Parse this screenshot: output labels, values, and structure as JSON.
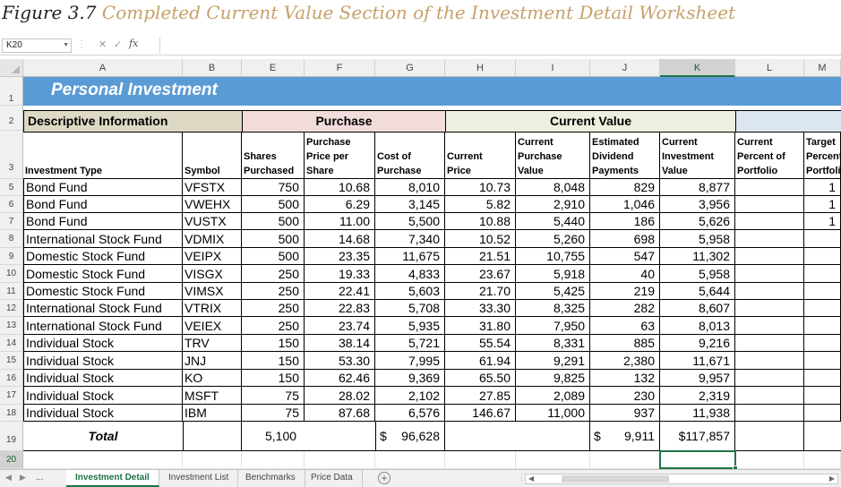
{
  "caption": {
    "prefix": "Figure 3.7",
    "title": "Completed Current Value Section of the Investment Detail Worksheet"
  },
  "formula_bar": {
    "name_box": "K20",
    "fx_label": "fx",
    "content": ""
  },
  "column_headers": [
    "A",
    "B",
    "E",
    "F",
    "G",
    "H",
    "I",
    "J",
    "K",
    "L",
    "M"
  ],
  "selected_column": "K",
  "row_numbers": [
    "1",
    "2",
    "3",
    "5",
    "6",
    "7",
    "8",
    "9",
    "10",
    "11",
    "12",
    "13",
    "14",
    "15",
    "16",
    "17",
    "18",
    "19",
    "20"
  ],
  "selected_row": "20",
  "sheet": {
    "title": "Personal Investment",
    "groups": {
      "descriptive": "Descriptive Information",
      "purchase": "Purchase",
      "current_value": "Current Value"
    },
    "headers": [
      "Investment Type",
      "Symbol",
      "Shares\nPurchased",
      "Purchase\nPrice per\nShare",
      "Cost of\nPurchase",
      "Current\nPrice",
      "Current\nPurchase\nValue",
      "Estimated\nDividend\nPayments",
      "Current\nInvestment\nValue",
      "Current\nPercent of\nPortfolio",
      "Target\nPercent\nPortfolio"
    ],
    "rows": [
      {
        "type": "Bond Fund",
        "symbol": "VFSTX",
        "shares": "750",
        "price": "10.68",
        "cost": "8,010",
        "cur_price": "10.73",
        "cur_purchase": "8,048",
        "dividend": "829",
        "cur_value": "8,877",
        "pct": "",
        "target": "1"
      },
      {
        "type": "Bond Fund",
        "symbol": "VWEHX",
        "shares": "500",
        "price": "6.29",
        "cost": "3,145",
        "cur_price": "5.82",
        "cur_purchase": "2,910",
        "dividend": "1,046",
        "cur_value": "3,956",
        "pct": "",
        "target": "1"
      },
      {
        "type": "Bond Fund",
        "symbol": "VUSTX",
        "shares": "500",
        "price": "11.00",
        "cost": "5,500",
        "cur_price": "10.88",
        "cur_purchase": "5,440",
        "dividend": "186",
        "cur_value": "5,626",
        "pct": "",
        "target": "1"
      },
      {
        "type": "International Stock Fund",
        "symbol": "VDMIX",
        "shares": "500",
        "price": "14.68",
        "cost": "7,340",
        "cur_price": "10.52",
        "cur_purchase": "5,260",
        "dividend": "698",
        "cur_value": "5,958",
        "pct": "",
        "target": ""
      },
      {
        "type": "Domestic Stock Fund",
        "symbol": "VEIPX",
        "shares": "500",
        "price": "23.35",
        "cost": "11,675",
        "cur_price": "21.51",
        "cur_purchase": "10,755",
        "dividend": "547",
        "cur_value": "11,302",
        "pct": "",
        "target": ""
      },
      {
        "type": "Domestic Stock Fund",
        "symbol": "VISGX",
        "shares": "250",
        "price": "19.33",
        "cost": "4,833",
        "cur_price": "23.67",
        "cur_purchase": "5,918",
        "dividend": "40",
        "cur_value": "5,958",
        "pct": "",
        "target": ""
      },
      {
        "type": "Domestic Stock Fund",
        "symbol": "VIMSX",
        "shares": "250",
        "price": "22.41",
        "cost": "5,603",
        "cur_price": "21.70",
        "cur_purchase": "5,425",
        "dividend": "219",
        "cur_value": "5,644",
        "pct": "",
        "target": ""
      },
      {
        "type": "International Stock Fund",
        "symbol": "VTRIX",
        "shares": "250",
        "price": "22.83",
        "cost": "5,708",
        "cur_price": "33.30",
        "cur_purchase": "8,325",
        "dividend": "282",
        "cur_value": "8,607",
        "pct": "",
        "target": ""
      },
      {
        "type": "International Stock Fund",
        "symbol": "VEIEX",
        "shares": "250",
        "price": "23.74",
        "cost": "5,935",
        "cur_price": "31.80",
        "cur_purchase": "7,950",
        "dividend": "63",
        "cur_value": "8,013",
        "pct": "",
        "target": ""
      },
      {
        "type": "Individual Stock",
        "symbol": "TRV",
        "shares": "150",
        "price": "38.14",
        "cost": "5,721",
        "cur_price": "55.54",
        "cur_purchase": "8,331",
        "dividend": "885",
        "cur_value": "9,216",
        "pct": "",
        "target": ""
      },
      {
        "type": "Individual Stock",
        "symbol": "JNJ",
        "shares": "150",
        "price": "53.30",
        "cost": "7,995",
        "cur_price": "61.94",
        "cur_purchase": "9,291",
        "dividend": "2,380",
        "cur_value": "11,671",
        "pct": "",
        "target": ""
      },
      {
        "type": "Individual Stock",
        "symbol": "KO",
        "shares": "150",
        "price": "62.46",
        "cost": "9,369",
        "cur_price": "65.50",
        "cur_purchase": "9,825",
        "dividend": "132",
        "cur_value": "9,957",
        "pct": "",
        "target": ""
      },
      {
        "type": "Individual Stock",
        "symbol": "MSFT",
        "shares": "75",
        "price": "28.02",
        "cost": "2,102",
        "cur_price": "27.85",
        "cur_purchase": "2,089",
        "dividend": "230",
        "cur_value": "2,319",
        "pct": "",
        "target": ""
      },
      {
        "type": "Individual Stock",
        "symbol": "IBM",
        "shares": "75",
        "price": "87.68",
        "cost": "6,576",
        "cur_price": "146.67",
        "cur_purchase": "11,000",
        "dividend": "937",
        "cur_value": "11,938",
        "pct": "",
        "target": ""
      }
    ],
    "total": {
      "label": "Total",
      "shares": "5,100",
      "cost_symbol": "$",
      "cost": "96,628",
      "dividend_symbol": "$",
      "dividend": "9,911",
      "cur_value": "$117,857"
    }
  },
  "tabs": {
    "ellipsis": "...",
    "items": [
      "Investment Detail",
      "Investment List",
      "Benchmarks",
      "Price Data"
    ],
    "active_index": 0,
    "add_label": "+"
  },
  "colors": {
    "title_band": "#5b9bd5",
    "descriptive_fill": "#ddd9c4",
    "purchase_fill": "#f2dcdb",
    "current_fill": "#ebf1de",
    "extra_fill": "#dce6f1",
    "excel_green": "#217346",
    "caption_accent": "#c8a06a"
  }
}
